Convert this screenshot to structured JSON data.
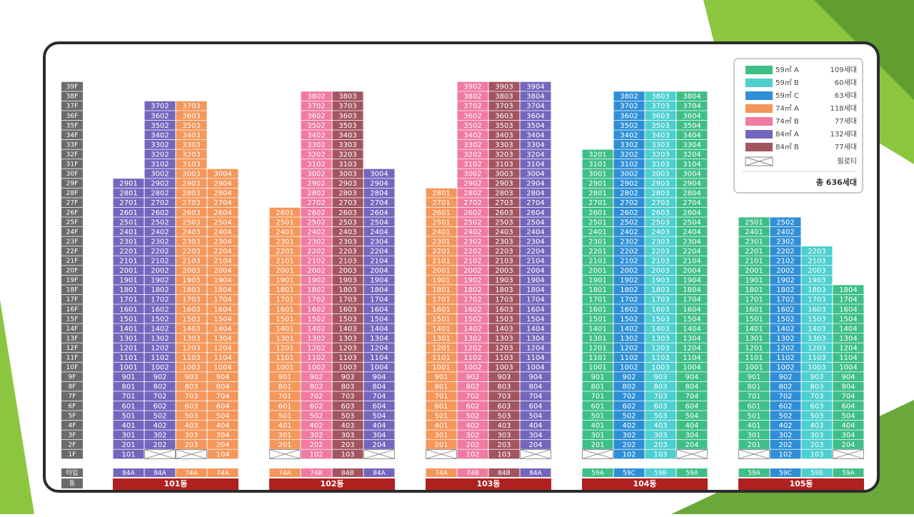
{
  "floors": [
    "39F",
    "38F",
    "37F",
    "36F",
    "35F",
    "34F",
    "33F",
    "32F",
    "31F",
    "30F",
    "29F",
    "28F",
    "27F",
    "26F",
    "25F",
    "24F",
    "23F",
    "22F",
    "21F",
    "20F",
    "19F",
    "18F",
    "17F",
    "16F",
    "15F",
    "14F",
    "13F",
    "12F",
    "11F",
    "10F",
    "9F",
    "8F",
    "7F",
    "6F",
    "5F",
    "4F",
    "3F",
    "2F",
    "1F"
  ],
  "row_labels": {
    "type": "타입",
    "building": "동"
  },
  "buildings": [
    {
      "name": "101동",
      "columns": [
        {
          "type": "84A",
          "color": "#7566bd",
          "units": [
            2901,
            2801,
            2701,
            2601,
            2501,
            2401,
            2301,
            2201,
            2101,
            2001,
            1901,
            1801,
            1701,
            1601,
            1501,
            1401,
            1301,
            1201,
            1101,
            1001,
            901,
            801,
            701,
            601,
            501,
            401,
            301,
            201,
            101
          ]
        },
        {
          "type": "84A",
          "color": "#7566bd",
          "units": [
            3702,
            3602,
            3502,
            3402,
            3302,
            3202,
            3102,
            3002,
            2902,
            2802,
            2702,
            2602,
            2502,
            2402,
            2302,
            2202,
            2102,
            2002,
            1902,
            1802,
            1702,
            1602,
            1502,
            1402,
            1302,
            1202,
            1102,
            1002,
            902,
            802,
            702,
            602,
            502,
            402,
            302,
            202,
            null
          ]
        },
        {
          "type": "74A",
          "color": "#f5965a",
          "units": [
            3703,
            3603,
            3503,
            3403,
            3303,
            3203,
            3103,
            3003,
            2903,
            2803,
            2703,
            2603,
            2503,
            2403,
            2303,
            2203,
            2103,
            2003,
            1903,
            1803,
            1703,
            1603,
            1503,
            1403,
            1303,
            1203,
            1103,
            1003,
            903,
            803,
            703,
            603,
            503,
            403,
            303,
            203,
            null
          ]
        },
        {
          "type": "74A",
          "color": "#f5965a",
          "units": [
            3004,
            2904,
            2804,
            2704,
            2604,
            2504,
            2404,
            2304,
            2204,
            2104,
            2004,
            1904,
            1804,
            1704,
            1604,
            1504,
            1404,
            1304,
            1204,
            1104,
            1004,
            904,
            804,
            704,
            604,
            504,
            404,
            304,
            204,
            104
          ]
        }
      ]
    },
    {
      "name": "102동",
      "columns": [
        {
          "type": "74A",
          "color": "#f5965a",
          "units": [
            2601,
            2501,
            2401,
            2301,
            2201,
            2101,
            2001,
            1901,
            1801,
            1701,
            1601,
            1501,
            1401,
            1301,
            1201,
            1101,
            1001,
            901,
            801,
            701,
            601,
            501,
            401,
            301,
            201,
            null
          ]
        },
        {
          "type": "74B",
          "color": "#f07aa0",
          "units": [
            3802,
            3702,
            3602,
            3502,
            3402,
            3302,
            3202,
            3102,
            3002,
            2902,
            2802,
            2702,
            2602,
            2502,
            2402,
            2302,
            2202,
            2102,
            2002,
            1902,
            1802,
            1702,
            1602,
            1502,
            1402,
            1302,
            1202,
            1102,
            1002,
            902,
            802,
            702,
            602,
            502,
            402,
            302,
            202,
            102
          ]
        },
        {
          "type": "84B",
          "color": "#a2545f",
          "units": [
            3803,
            3703,
            3603,
            3503,
            3403,
            3303,
            3203,
            3103,
            3003,
            2903,
            2803,
            2703,
            2603,
            2503,
            2403,
            2303,
            2203,
            2103,
            2003,
            1903,
            1803,
            1703,
            1603,
            1503,
            1403,
            1303,
            1203,
            1103,
            1003,
            903,
            803,
            703,
            603,
            503,
            403,
            303,
            203,
            103
          ]
        },
        {
          "type": "84A",
          "color": "#7566bd",
          "units": [
            3004,
            2904,
            2804,
            2704,
            2604,
            2504,
            2404,
            2304,
            2204,
            2104,
            2004,
            1904,
            1804,
            1704,
            1604,
            1504,
            1404,
            1304,
            1204,
            1104,
            1004,
            904,
            804,
            704,
            604,
            504,
            404,
            304,
            204,
            null
          ]
        }
      ]
    },
    {
      "name": "103동",
      "columns": [
        {
          "type": "74A",
          "color": "#f5965a",
          "units": [
            2801,
            2701,
            2601,
            2501,
            2401,
            2301,
            2201,
            2101,
            2001,
            1901,
            1801,
            1701,
            1601,
            1501,
            1401,
            1301,
            1201,
            1101,
            1001,
            901,
            801,
            701,
            601,
            501,
            401,
            301,
            201,
            null
          ]
        },
        {
          "type": "74B",
          "color": "#f07aa0",
          "units": [
            3902,
            3802,
            3702,
            3602,
            3502,
            3402,
            3302,
            3202,
            3102,
            3002,
            2902,
            2802,
            2702,
            2602,
            2502,
            2402,
            2302,
            2202,
            2102,
            2002,
            1902,
            1802,
            1702,
            1602,
            1502,
            1402,
            1302,
            1202,
            1102,
            1002,
            902,
            802,
            702,
            602,
            502,
            402,
            302,
            202,
            102
          ]
        },
        {
          "type": "84B",
          "color": "#a2545f",
          "units": [
            3903,
            3803,
            3703,
            3603,
            3503,
            3403,
            3303,
            3203,
            3103,
            3003,
            2903,
            2803,
            2703,
            2603,
            2503,
            2403,
            2303,
            2203,
            2103,
            2003,
            1903,
            1803,
            1703,
            1603,
            1503,
            1403,
            1303,
            1203,
            1103,
            1003,
            903,
            803,
            703,
            603,
            503,
            403,
            303,
            203,
            103
          ]
        },
        {
          "type": "84A",
          "color": "#7566bd",
          "units": [
            3904,
            3804,
            3704,
            3604,
            3504,
            3404,
            3304,
            3204,
            3104,
            3004,
            2904,
            2804,
            2704,
            2604,
            2504,
            2404,
            2304,
            2204,
            2104,
            2004,
            1904,
            1804,
            1704,
            1604,
            1504,
            1404,
            1304,
            1204,
            1104,
            1004,
            904,
            804,
            704,
            604,
            504,
            404,
            304,
            204,
            null
          ]
        }
      ]
    },
    {
      "name": "104동",
      "columns": [
        {
          "type": "59A",
          "color": "#3ebf88",
          "units": [
            3201,
            3101,
            3001,
            2901,
            2801,
            2701,
            2601,
            2501,
            2401,
            2301,
            2201,
            2101,
            2001,
            1901,
            1801,
            1701,
            1601,
            1501,
            1401,
            1301,
            1201,
            1101,
            1001,
            901,
            801,
            701,
            601,
            501,
            401,
            301,
            201,
            null
          ]
        },
        {
          "type": "59C",
          "color": "#2f8fd6",
          "units": [
            3802,
            3702,
            3602,
            3502,
            3402,
            3302,
            3202,
            3102,
            3002,
            2902,
            2802,
            2702,
            2602,
            2502,
            2402,
            2302,
            2202,
            2102,
            2002,
            1902,
            1802,
            1702,
            1602,
            1502,
            1402,
            1302,
            1202,
            1102,
            1002,
            902,
            802,
            702,
            602,
            502,
            402,
            302,
            202,
            102
          ]
        },
        {
          "type": "59B",
          "color": "#4ecfcf",
          "units": [
            3803,
            3703,
            3603,
            3503,
            3403,
            3303,
            3203,
            3103,
            3003,
            2903,
            2803,
            2703,
            2603,
            2503,
            2403,
            2303,
            2203,
            2103,
            2003,
            1903,
            1803,
            1703,
            1603,
            1503,
            1403,
            1303,
            1203,
            1103,
            1003,
            903,
            803,
            703,
            603,
            503,
            403,
            303,
            203,
            103
          ]
        },
        {
          "type": "59A",
          "color": "#3ebf88",
          "units": [
            3804,
            3704,
            3604,
            3504,
            3404,
            3304,
            3204,
            3104,
            3004,
            2904,
            2804,
            2704,
            2604,
            2504,
            2404,
            2304,
            2204,
            2104,
            2004,
            1904,
            1804,
            1704,
            1604,
            1504,
            1404,
            1304,
            1204,
            1104,
            1004,
            904,
            804,
            704,
            604,
            504,
            404,
            304,
            204,
            null
          ]
        }
      ]
    },
    {
      "name": "105동",
      "columns": [
        {
          "type": "59A",
          "color": "#3ebf88",
          "units": [
            2501,
            2401,
            2301,
            2201,
            2101,
            2001,
            1901,
            1801,
            1701,
            1601,
            1501,
            1401,
            1301,
            1201,
            1101,
            1001,
            901,
            801,
            701,
            601,
            501,
            401,
            301,
            201,
            null
          ]
        },
        {
          "type": "59C",
          "color": "#2f8fd6",
          "units": [
            2502,
            2402,
            2302,
            2202,
            2102,
            2002,
            1902,
            1802,
            1702,
            1602,
            1502,
            1402,
            1302,
            1202,
            1102,
            1002,
            902,
            802,
            702,
            602,
            502,
            402,
            302,
            202,
            102
          ]
        },
        {
          "type": "59B",
          "color": "#4ecfcf",
          "units": [
            2203,
            2103,
            2003,
            1903,
            1803,
            1703,
            1603,
            1503,
            1403,
            1303,
            1203,
            1103,
            1003,
            903,
            803,
            703,
            603,
            503,
            403,
            303,
            203,
            103
          ]
        },
        {
          "type": "59A",
          "color": "#3ebf88",
          "units": [
            1804,
            1704,
            1604,
            1504,
            1404,
            1304,
            1204,
            1104,
            1004,
            904,
            804,
            704,
            604,
            504,
            404,
            304,
            204,
            null
          ]
        }
      ]
    }
  ],
  "legend": {
    "items": [
      {
        "label": "59㎡ A",
        "count": "109세대",
        "color": "#3ebf88"
      },
      {
        "label": "59㎡ B",
        "count": "60세대",
        "color": "#4ecfcf"
      },
      {
        "label": "59㎡ C",
        "count": "63세대",
        "color": "#2f8fd6"
      },
      {
        "label": "74㎡ A",
        "count": "118세대",
        "color": "#f5965a"
      },
      {
        "label": "74㎡ B",
        "count": "77세대",
        "color": "#f07aa0"
      },
      {
        "label": "84㎡ A",
        "count": "132세대",
        "color": "#7566bd"
      },
      {
        "label": "84㎡ B",
        "count": "77세대",
        "color": "#a2545f"
      }
    ],
    "piloti": "필로티",
    "total": "총 636세대"
  }
}
